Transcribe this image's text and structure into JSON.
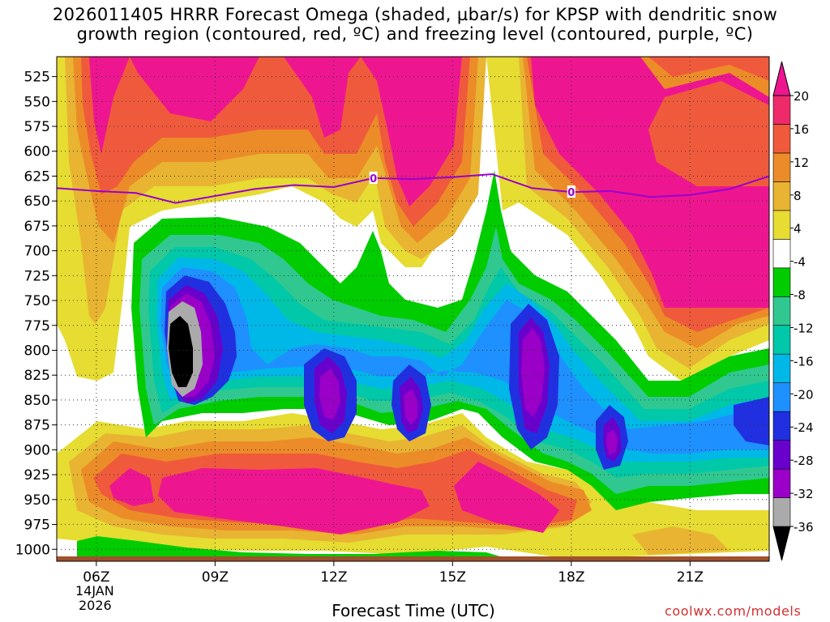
{
  "title": {
    "line1": "2026011405 HRRR Forecast Omega (shaded, µbar/s) for KPSP with dendritic snow",
    "line2": "growth region (contoured, red, ºC) and freezing level (contoured, purple, ºC)"
  },
  "credit": "coolwx.com/models",
  "x_date_line1": "14JAN",
  "x_date_line2": "2026",
  "chart_data": {
    "type": "heatmap",
    "title": "2026011405 HRRR Forecast Omega (shaded, µbar/s) for KPSP with dendritic snow growth region (contoured, red, ºC) and freezing level (contoured, purple, ºC)",
    "xlabel": "Forecast Time (UTC)",
    "ylabel": "",
    "x_ticks": [
      "06Z",
      "09Z",
      "12Z",
      "15Z",
      "18Z",
      "21Z"
    ],
    "x_tick_hours": [
      6,
      9,
      12,
      15,
      18,
      21
    ],
    "x_range_hours": [
      5,
      23
    ],
    "y_ticks": [
      525,
      550,
      575,
      600,
      625,
      650,
      675,
      700,
      725,
      750,
      775,
      800,
      825,
      850,
      875,
      900,
      925,
      950,
      975,
      1000
    ],
    "y_range": [
      505,
      1012
    ],
    "y_reversed": true,
    "grid": true,
    "colorbar": {
      "levels": [
        -36,
        -32,
        -28,
        -24,
        -20,
        -16,
        -12,
        -8,
        -4,
        4,
        8,
        12,
        16,
        20
      ],
      "labels": [
        "20",
        "16",
        "12",
        "8",
        "4",
        "-4",
        "-8",
        "-12",
        "-16",
        "-20",
        "-24",
        "-28",
        "-32",
        "-36"
      ],
      "colors": [
        "#000000",
        "#aaaaaa",
        "#9a00c8",
        "#6a00cc",
        "#2030e0",
        "#1e90ff",
        "#00b8e8",
        "#00c8a8",
        "#30c890",
        "#00cc00",
        "#ffffff",
        "#e6dc32",
        "#e8b432",
        "#ec8c28",
        "#f05a3c",
        "#ee2a6a",
        "#ee1690"
      ]
    },
    "freezing_level": {
      "label": "0",
      "hours": [
        5,
        6,
        7,
        8,
        9,
        10,
        11,
        12,
        13,
        14,
        15,
        16,
        17,
        18,
        19,
        20,
        21,
        22,
        23
      ],
      "pressure": [
        637,
        640,
        642,
        652,
        645,
        638,
        634,
        636,
        627,
        628,
        626,
        623,
        637,
        641,
        640,
        646,
        644,
        638,
        625
      ]
    },
    "series": [
      {
        "name": "Omega (shaded)",
        "note": "strongest upward motion near 08Z 725-800 hPa (< -36); strong sinking (> 20) aloft above 625 hPa and near 900-975 hPa"
      }
    ]
  }
}
